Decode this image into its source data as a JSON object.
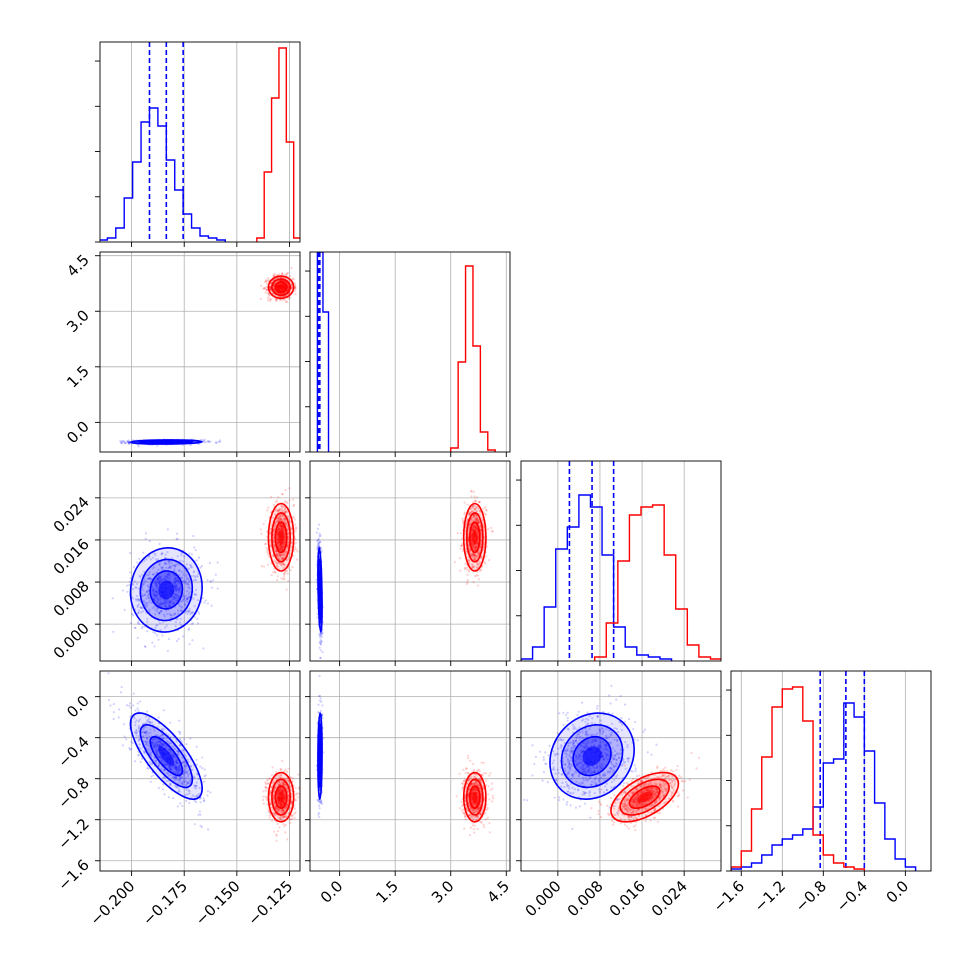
{
  "colors": {
    "blue": "#0000ff",
    "red": "#ff0000",
    "grid": "#b0b0b0",
    "axes": "#000000"
  },
  "chart_data": {
    "type": "corner",
    "grid": true,
    "params": [
      {
        "range": [
          -0.215,
          -0.12
        ],
        "ticks": [
          -0.2,
          -0.175,
          -0.15,
          -0.125
        ],
        "tick_labels": [
          "−0.200",
          "−0.175",
          "−0.150",
          "−0.125"
        ]
      },
      {
        "range": [
          -0.8,
          4.6
        ],
        "ticks": [
          0.0,
          1.5,
          3.0,
          4.5
        ],
        "tick_labels": [
          "0.0",
          "1.5",
          "3.0",
          "4.5"
        ]
      },
      {
        "range": [
          -0.007,
          0.031
        ],
        "ticks": [
          0.0,
          0.008,
          0.016,
          0.024
        ],
        "tick_labels": [
          "0.000",
          "0.008",
          "0.016",
          "0.024"
        ]
      },
      {
        "range": [
          -1.7,
          0.25
        ],
        "ticks": [
          -1.6,
          -1.2,
          -0.8,
          -0.4,
          0.0
        ],
        "tick_labels": [
          "−1.6",
          "−1.2",
          "−0.8",
          "−0.4",
          "0.0"
        ]
      }
    ],
    "series": [
      {
        "color": "blue",
        "hist": [
          {
            "bins": [
              -0.2155,
              -0.2115,
              -0.2075,
              -0.2035,
              -0.1995,
              -0.1955,
              -0.1915,
              -0.1875,
              -0.1835,
              -0.1795,
              -0.1755,
              -0.1715,
              -0.1675,
              -0.1635,
              -0.1595,
              -0.1555
            ],
            "counts": [
              0.01,
              0.02,
              0.07,
              0.22,
              0.4,
              0.6,
              0.67,
              0.58,
              0.41,
              0.26,
              0.14,
              0.07,
              0.03,
              0.02,
              0.01
            ]
          },
          {
            "bins": [
              -0.6,
              -0.45,
              -0.3
            ],
            "counts": [
              1.0,
              0.7
            ]
          },
          {
            "bins": [
              -0.007,
              -0.0048,
              -0.0026,
              -0.0004,
              0.0018,
              0.004,
              0.0062,
              0.0084,
              0.0106,
              0.0128,
              0.015,
              0.0172,
              0.0194,
              0.0216
            ],
            "counts": [
              0.01,
              0.07,
              0.27,
              0.56,
              0.67,
              0.83,
              0.77,
              0.53,
              0.17,
              0.07,
              0.03,
              0.02,
              0.01
            ]
          },
          {
            "bins": [
              -1.7,
              -1.6,
              -1.5,
              -1.4,
              -1.3,
              -1.2,
              -1.1,
              -1.0,
              -0.9,
              -0.8,
              -0.7,
              -0.6,
              -0.5,
              -0.4,
              -0.3,
              -0.2,
              -0.1,
              0.0,
              0.1
            ],
            "counts": [
              0.01,
              0.02,
              0.04,
              0.08,
              0.13,
              0.16,
              0.18,
              0.21,
              0.32,
              0.54,
              0.56,
              0.84,
              0.77,
              0.6,
              0.34,
              0.16,
              0.06,
              0.02
            ]
          }
        ],
        "quantiles": [
          [
            -0.1915,
            -0.1835,
            -0.1755
          ],
          [
            -0.575,
            -0.555,
            -0.535
          ],
          [
            0.0022,
            0.0065,
            0.0106
          ],
          [
            -0.83,
            -0.58,
            -0.4
          ]
        ],
        "means": [
          -0.1835,
          -0.53,
          0.0065,
          -0.58
        ],
        "sds": [
          0.0085,
          0.028,
          0.004,
          0.21
        ],
        "corr": [
          [
            1,
            0.1,
            0.05,
            -0.75
          ],
          [
            0.1,
            1,
            -0.4,
            0.1
          ],
          [
            0.05,
            -0.4,
            1,
            0.15
          ],
          [
            -0.75,
            0.1,
            0.15,
            1
          ]
        ]
      },
      {
        "color": "red",
        "hist": [
          {
            "bins": [
              -0.1405,
              -0.137,
              -0.1335,
              -0.13,
              -0.1265,
              -0.123,
              -0.1195
            ],
            "counts": [
              0.02,
              0.35,
              0.72,
              0.97,
              0.5,
              0.02
            ]
          },
          {
            "bins": [
              3.0,
              3.2,
              3.4,
              3.6,
              3.8,
              4.0,
              4.2
            ],
            "counts": [
              0.02,
              0.45,
              0.93,
              0.53,
              0.1,
              0.01
            ]
          },
          {
            "bins": [
              0.007,
              0.0092,
              0.0114,
              0.0136,
              0.0158,
              0.018,
              0.0202,
              0.0224,
              0.0246,
              0.0268,
              0.029,
              0.0312
            ],
            "counts": [
              0.02,
              0.19,
              0.5,
              0.73,
              0.77,
              0.78,
              0.53,
              0.26,
              0.08,
              0.02,
              0.01
            ]
          },
          {
            "bins": [
              -1.7,
              -1.6,
              -1.5,
              -1.4,
              -1.3,
              -1.2,
              -1.1,
              -1.0,
              -0.9,
              -0.8,
              -0.7,
              -0.6,
              -0.5,
              -0.4
            ],
            "counts": [
              0.02,
              0.1,
              0.31,
              0.57,
              0.82,
              0.91,
              0.92,
              0.75,
              0.18,
              0.08,
              0.04,
              0.02,
              0.01
            ]
          }
        ],
        "means": [
          -0.129,
          3.65,
          0.0165,
          -0.98
        ],
        "sds": [
          0.003,
          0.15,
          0.0032,
          0.12
        ],
        "corr": [
          [
            1,
            0.0,
            0.0,
            0.0
          ],
          [
            0.0,
            1,
            0.0,
            0.0
          ],
          [
            0.0,
            0.0,
            1,
            0.55
          ],
          [
            0.0,
            0.0,
            0.55,
            1
          ]
        ]
      }
    ]
  }
}
